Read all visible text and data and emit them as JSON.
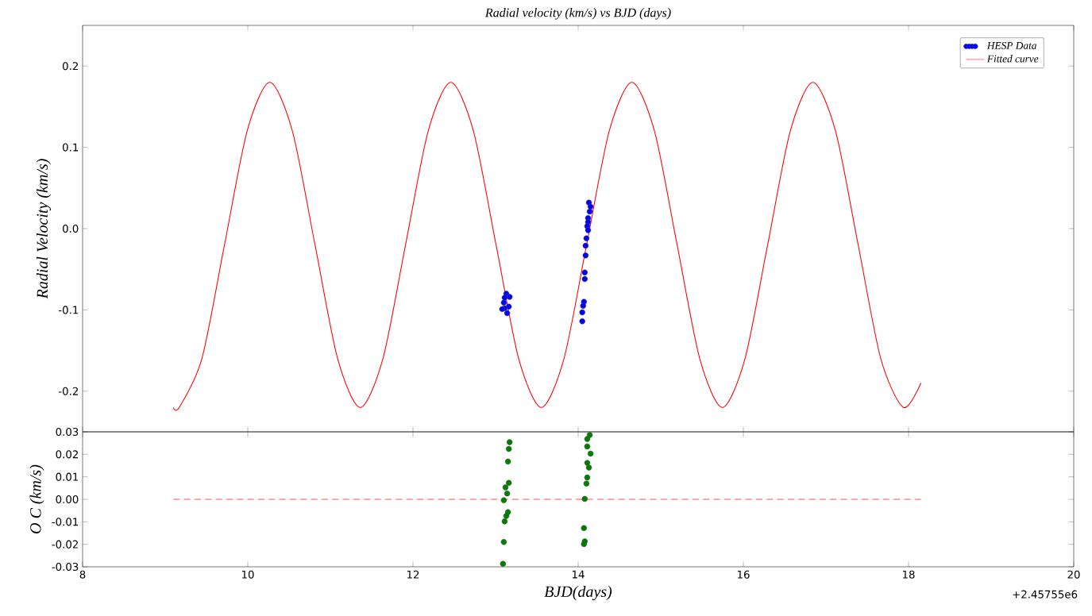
{
  "chart_data": [
    {
      "type": "scatter",
      "title": "Radial velocity (km/s) vs BJD (days)",
      "ylabel": "Radial Velocity (km/s)",
      "xlim": [
        8,
        20
      ],
      "xticks": [
        8,
        10,
        12,
        14,
        16,
        18,
        20
      ],
      "ylim": [
        -0.25,
        0.25
      ],
      "yticks": [
        -0.2,
        -0.1,
        {
          "value": 0,
          "label": "0.0"
        },
        0.1,
        0.2
      ],
      "tick_labels": "y",
      "grid": false,
      "legend": "top right",
      "series": [
        {
          "name": "HESP Data",
          "type": "scatter",
          "marker": "circle",
          "color": "#0000ff",
          "x": [
            13.13,
            13.17,
            13.11,
            13.1,
            13.16,
            13.11,
            13.08,
            13.14,
            14.13,
            14.15,
            14.14,
            14.12,
            14.12,
            14.11,
            14.12,
            14.1,
            14.09,
            14.09,
            14.08,
            14.08,
            14.07,
            14.06,
            14.05,
            14.05
          ],
          "values": [
            -0.08,
            -0.084,
            -0.085,
            -0.091,
            -0.096,
            -0.098,
            -0.099,
            -0.104,
            0.032,
            0.027,
            0.021,
            0.013,
            0.008,
            0.003,
            -0.002,
            -0.012,
            -0.021,
            -0.033,
            -0.054,
            -0.062,
            -0.09,
            -0.095,
            -0.103,
            -0.114
          ]
        },
        {
          "name": "Fitted curve",
          "type": "line",
          "marker": "none",
          "line_style": "solid",
          "color": "#ff0000",
          "x": [
            9.1,
            9.17,
            9.444,
            9.718,
            9.992,
            10.266,
            10.54,
            10.814,
            11.088,
            11.362,
            11.636,
            11.91,
            12.184,
            12.458,
            12.732,
            13.006,
            13.28,
            13.554,
            13.828,
            14.102,
            14.376,
            14.65,
            14.924,
            15.198,
            15.472,
            15.746,
            16.02,
            16.294,
            16.568,
            16.842,
            17.116,
            17.39,
            17.664,
            17.938,
            18.15
          ],
          "values": [
            -0.22,
            -0.22,
            -0.16,
            -0.02,
            0.12,
            0.18,
            0.12,
            -0.02,
            -0.16,
            -0.22,
            -0.16,
            -0.02,
            0.12,
            0.18,
            0.12,
            -0.02,
            -0.16,
            -0.22,
            -0.16,
            -0.02,
            0.12,
            0.18,
            0.12,
            -0.02,
            -0.16,
            -0.22,
            -0.16,
            -0.02,
            0.12,
            0.18,
            0.12,
            -0.02,
            -0.16,
            -0.22,
            -0.19
          ]
        }
      ]
    },
    {
      "type": "scatter",
      "xlabel": "BJD(days)",
      "ylabel": "O C (km/s)",
      "annotations": [
        "+2.45755e6"
      ],
      "xlim": [
        8,
        20
      ],
      "xticks": [
        8,
        10,
        12,
        14,
        16,
        18,
        20
      ],
      "ylim": [
        -0.03,
        0.03
      ],
      "yticks": [
        -0.03,
        -0.02,
        -0.01,
        {
          "value": 0,
          "label": "0.00"
        },
        0.01,
        0.02,
        0.03
      ],
      "grid": false,
      "legend": false,
      "series": [
        {
          "type": "scatter",
          "marker": "circle",
          "color": "#007f00",
          "x": [
            13.17,
            13.16,
            13.15,
            13.16,
            13.12,
            13.14,
            13.1,
            13.15,
            13.13,
            13.11,
            13.1,
            13.09,
            14.14,
            14.11,
            14.11,
            14.15,
            14.11,
            14.13,
            14.11,
            14.1,
            14.08,
            14.07,
            14.08,
            14.07
          ],
          "values": [
            0.0254,
            0.0224,
            0.0168,
            0.0073,
            0.0053,
            0.0026,
            -0.0004,
            -0.0057,
            -0.0074,
            -0.0098,
            -0.019,
            -0.0287,
            0.0286,
            0.0268,
            0.0235,
            0.0203,
            0.0162,
            0.0141,
            0.0097,
            0.007,
            0.0002,
            -0.0128,
            -0.0187,
            -0.0199
          ]
        },
        {
          "type": "line",
          "marker": "none",
          "line_style": "dashed",
          "color": "#ff5050",
          "x": [
            9.1,
            18.15
          ],
          "values": [
            0,
            0
          ]
        }
      ]
    }
  ]
}
